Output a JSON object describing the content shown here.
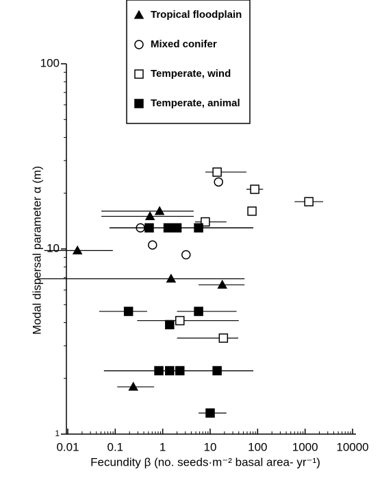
{
  "chart_data": {
    "type": "scatter",
    "x_label": "Fecundity β (no. seeds·m⁻² basal area- yr⁻¹)",
    "y_label": "Modal dispersal parameter α (m)",
    "x_log": true,
    "y_log": true,
    "xlim": [
      0.01,
      10000
    ],
    "xticks": [
      0.01,
      0.1,
      1,
      10,
      100,
      1000,
      10000
    ],
    "ylim": [
      1,
      100
    ],
    "yticks": [
      1,
      10,
      100
    ],
    "legend": "top",
    "series": [
      {
        "name": "Tropical floodplain",
        "marker": "triangle",
        "filled": true,
        "color": "#000000",
        "x": [
          0.016,
          0.54,
          0.86,
          1.5,
          18,
          0.24
        ],
        "values": [
          9.8,
          15,
          16,
          6.9,
          6.4,
          1.8
        ],
        "x_low": [
          0.0032,
          0.051,
          0.051,
          0.0023,
          5.7,
          0.11
        ],
        "x_high": [
          0.089,
          4.5,
          4.5,
          53,
          53,
          0.66
        ]
      },
      {
        "name": "Mixed conifer",
        "marker": "circle",
        "filled": false,
        "color": "#000000",
        "x": [
          0.34,
          0.61,
          3.1,
          15
        ],
        "values": [
          13,
          10.5,
          9.3,
          23
        ],
        "x_low": [
          null,
          null,
          null,
          null
        ],
        "x_high": [
          null,
          null,
          null,
          null
        ]
      },
      {
        "name": "Temperate, wind",
        "marker": "square",
        "filled": false,
        "color": "#000000",
        "x": [
          14,
          87,
          76,
          1200,
          7.9,
          2.3,
          19
        ],
        "values": [
          26,
          21,
          16,
          18,
          14,
          4.1,
          3.3
        ],
        "x_low": [
          7.9,
          58,
          null,
          600,
          4.8,
          0.29,
          2.0
        ],
        "x_high": [
          58,
          130,
          null,
          2400,
          22,
          40,
          39
        ]
      },
      {
        "name": "Temperate, animal",
        "marker": "square",
        "filled": true,
        "color": "#000000",
        "x": [
          0.19,
          1.4,
          5.7,
          0.52,
          1.3,
          2.0,
          5.7,
          0.83,
          1.4,
          2.3,
          14,
          10
        ],
        "values": [
          4.6,
          3.9,
          4.6,
          13,
          13,
          13,
          13,
          2.2,
          2.2,
          2.2,
          2.2,
          1.3
        ],
        "x_low": [
          0.046,
          null,
          2.0,
          0.076,
          0.076,
          0.076,
          0.076,
          0.058,
          0.058,
          0.058,
          0.058,
          5.7
        ],
        "x_high": [
          0.47,
          null,
          36,
          81,
          81,
          81,
          81,
          81,
          81,
          81,
          81,
          22
        ]
      }
    ]
  }
}
